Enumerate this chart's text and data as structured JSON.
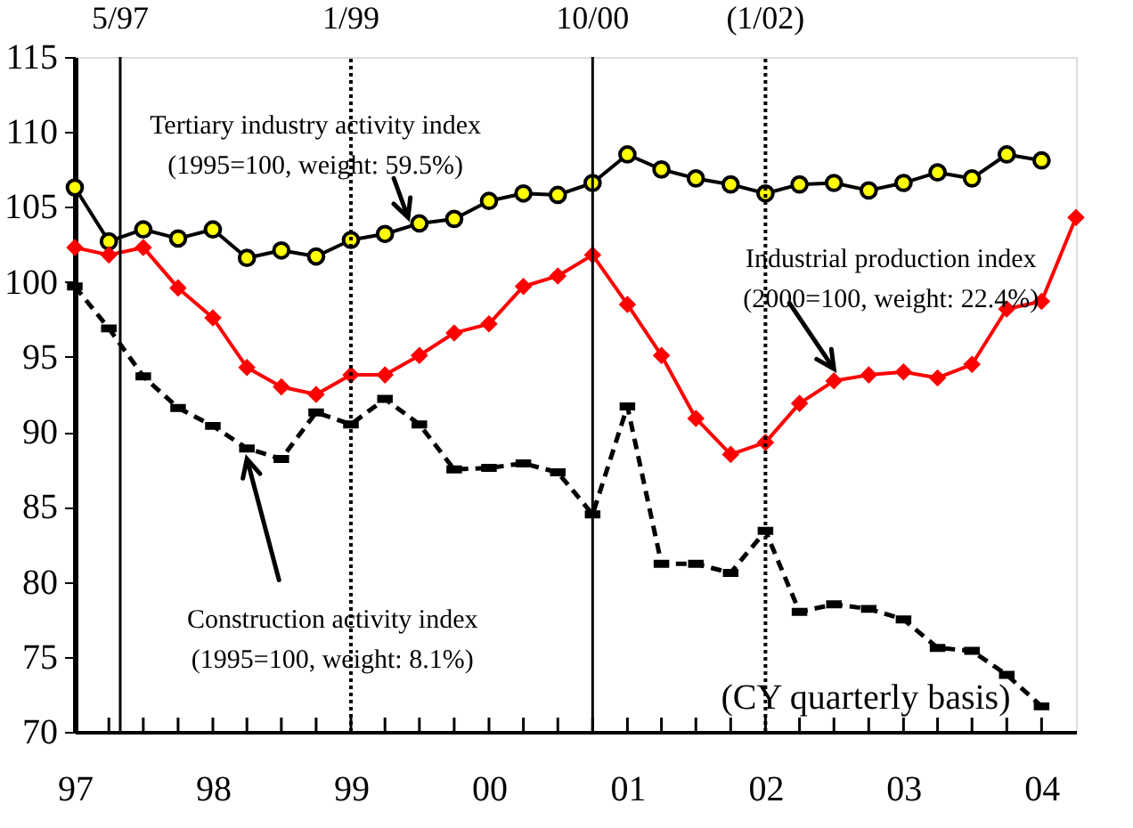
{
  "chart_data": {
    "type": "line",
    "x": [
      "1997-01",
      "1997-04",
      "1997-07",
      "1997-10",
      "1998-01",
      "1998-04",
      "1998-07",
      "1998-10",
      "1999-01",
      "1999-04",
      "1999-07",
      "1999-10",
      "2000-01",
      "2000-04",
      "2000-07",
      "2000-10",
      "2001-01",
      "2001-04",
      "2001-07",
      "2001-10",
      "2002-01",
      "2002-04",
      "2002-07",
      "2002-10",
      "2003-01",
      "2003-04",
      "2003-07",
      "2003-10",
      "2004-01",
      "2004-04"
    ],
    "series": [
      {
        "color": "#ffff00",
        "marker": "circle",
        "line_style": "solid",
        "values": [
          106.3,
          102.7,
          103.5,
          102.9,
          103.5,
          101.6,
          102.1,
          101.7,
          102.8,
          103.2,
          103.9,
          104.2,
          105.4,
          105.9,
          105.8,
          106.6,
          108.5,
          107.5,
          106.9,
          106.5,
          105.9,
          106.5,
          106.6,
          106.1,
          106.6,
          107.3,
          106.9,
          108.5,
          108.1,
          null
        ]
      },
      {
        "color": "#ff0000",
        "marker": "diamond",
        "line_style": "solid",
        "values": [
          102.3,
          101.8,
          102.3,
          99.6,
          97.6,
          94.3,
          93.0,
          92.5,
          93.8,
          93.8,
          95.1,
          96.6,
          97.2,
          99.7,
          100.4,
          101.8,
          98.5,
          95.1,
          90.9,
          88.5,
          89.3,
          91.9,
          93.4,
          93.8,
          94.0,
          93.6,
          94.5,
          98.2,
          98.7,
          104.3
        ]
      },
      {
        "color": "#000000",
        "marker": "square",
        "line_style": "dashed",
        "values": [
          99.7,
          96.9,
          93.7,
          91.6,
          90.4,
          88.9,
          88.2,
          91.3,
          90.5,
          92.2,
          90.5,
          87.5,
          87.6,
          87.9,
          87.3,
          84.5,
          91.7,
          81.2,
          81.2,
          80.6,
          83.4,
          78.0,
          78.5,
          78.2,
          77.5,
          75.6,
          75.4,
          73.8,
          71.7,
          null
        ]
      }
    ],
    "xlim": [
      "1997-01",
      "2004-04"
    ],
    "xticks": [
      {
        "value": "1997-01",
        "label": "97"
      },
      {
        "value": "1997-04",
        "label": null
      },
      {
        "value": "1997-07",
        "label": null
      },
      {
        "value": "1997-10",
        "label": null
      },
      {
        "value": "1998-01",
        "label": "98"
      },
      {
        "value": "1998-04",
        "label": null
      },
      {
        "value": "1998-07",
        "label": null
      },
      {
        "value": "1998-10",
        "label": null
      },
      {
        "value": "1999-01",
        "label": "99"
      },
      {
        "value": "1999-04",
        "label": null
      },
      {
        "value": "1999-07",
        "label": null
      },
      {
        "value": "1999-10",
        "label": null
      },
      {
        "value": "2000-01",
        "label": "00"
      },
      {
        "value": "2000-04",
        "label": null
      },
      {
        "value": "2000-07",
        "label": null
      },
      {
        "value": "2000-10",
        "label": null
      },
      {
        "value": "2001-01",
        "label": "01"
      },
      {
        "value": "2001-04",
        "label": null
      },
      {
        "value": "2001-07",
        "label": null
      },
      {
        "value": "2001-10",
        "label": null
      },
      {
        "value": "2002-01",
        "label": "02"
      },
      {
        "value": "2002-04",
        "label": null
      },
      {
        "value": "2002-07",
        "label": null
      },
      {
        "value": "2002-10",
        "label": null
      },
      {
        "value": "2003-01",
        "label": "03"
      },
      {
        "value": "2003-04",
        "label": null
      },
      {
        "value": "2003-07",
        "label": null
      },
      {
        "value": "2003-10",
        "label": null
      },
      {
        "value": "2004-01",
        "label": "04"
      }
    ],
    "ylim": [
      70,
      115
    ],
    "yticks": [
      70,
      75,
      80,
      85,
      90,
      95,
      100,
      105,
      110,
      115
    ],
    "grid": false,
    "ref_lines": [
      {
        "axis": "x",
        "value": "1997-05",
        "label": "5/97",
        "color": "#000000",
        "line_style": "solid"
      },
      {
        "axis": "x",
        "value": "1999-01",
        "label": "1/99",
        "color": "#000000",
        "line_style": "dotted"
      },
      {
        "axis": "x",
        "value": "2000-10",
        "label": "10/00",
        "color": "#000000",
        "line_style": "solid"
      },
      {
        "axis": "x",
        "value": "2002-01",
        "label": "(1/02)",
        "color": "#000000",
        "line_style": "dotted"
      }
    ],
    "annotations": [
      {
        "text": "Tertiary industry activity index\n(1995=100, weight: 59.5%)",
        "x": "1999-06",
        "y": 104.3
      },
      {
        "text": "Industrial production index\n(2000=100, weight: 22.4%)",
        "x": "2002-07",
        "y": 94.2
      },
      {
        "text": "Construction activity index\n(1995=100, weight: 8.1%)",
        "x": "1998-04",
        "y": 88.2
      },
      "(CY quarterly basis)"
    ]
  }
}
